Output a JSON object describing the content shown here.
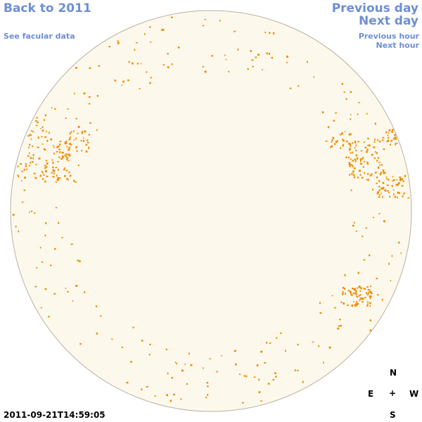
{
  "nav": {
    "back_label": "Back to 2011",
    "facular_label": "See facular data",
    "prev_day_label": "Previous day",
    "next_day_label": "Next day",
    "prev_hour_label": "Previous hour",
    "next_hour_label": "Next hour"
  },
  "timestamp": "2011-09-21T14:59:05",
  "compass": {
    "north": "N",
    "east": "E",
    "center": "+",
    "west": "W",
    "south": "S"
  },
  "colors": {
    "link": "#6d8fd6",
    "disk_fill": "#fdf8ec",
    "disk_outline": "#b9b2a2",
    "feature": "#f08c00"
  }
}
